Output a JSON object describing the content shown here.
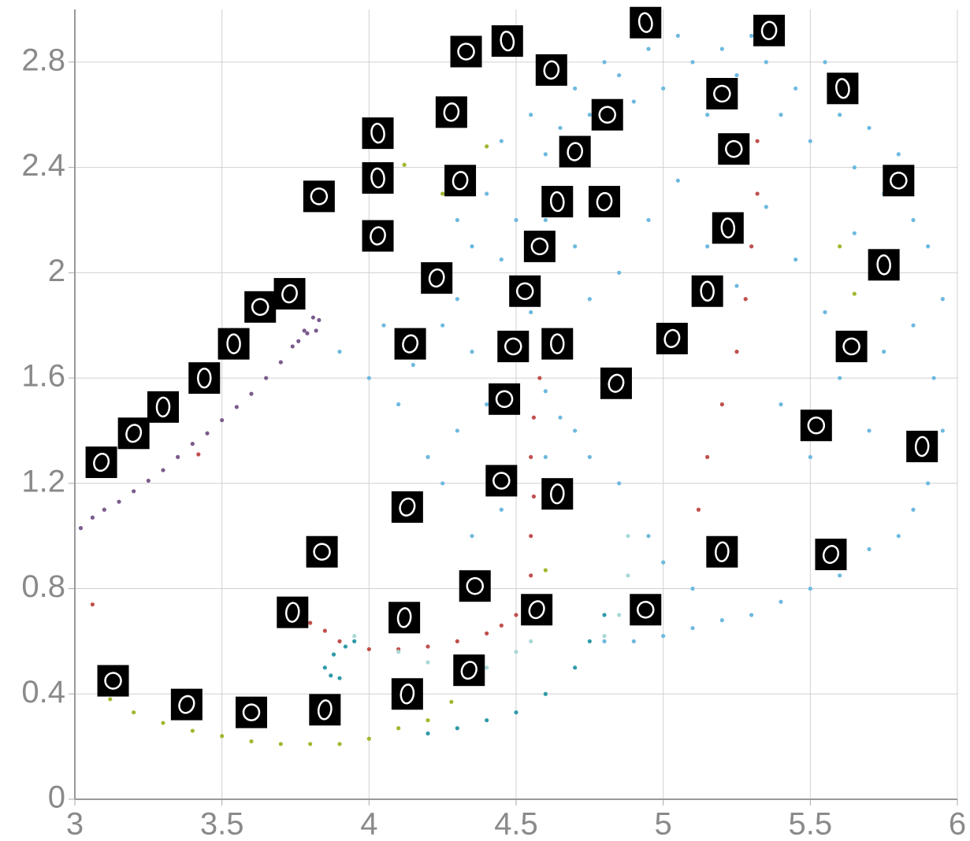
{
  "chart_data": {
    "type": "scatter",
    "xlim": [
      3,
      6
    ],
    "ylim": [
      0,
      3
    ],
    "xticks": [
      3,
      3.5,
      4,
      4.5,
      5,
      5.5,
      6
    ],
    "yticks": [
      0,
      0.4,
      0.8,
      1.2,
      1.6,
      2,
      2.4,
      2.8
    ],
    "grid": true,
    "series": [
      {
        "color": "#6db9df",
        "x": [
          4.3,
          4.35,
          4.4,
          4.45,
          4.5,
          4.55,
          4.6,
          4.65,
          4.7,
          4.75,
          4.8,
          4.85,
          4.9,
          4.95,
          5.0,
          5.05,
          5.1,
          5.15,
          5.2,
          5.25,
          5.3,
          5.35,
          5.4,
          5.45,
          5.5,
          5.55,
          5.6,
          5.65,
          5.7,
          5.75,
          5.8,
          5.85,
          5.9,
          5.95,
          4.2,
          4.25,
          4.3,
          4.35,
          4.45,
          4.5,
          4.55,
          4.6,
          4.65,
          4.7,
          4.75,
          4.85,
          4.95,
          5.05,
          5.15,
          5.25,
          5.35,
          5.45,
          5.55,
          5.65,
          5.75,
          5.85,
          5.92,
          5.95,
          5.9,
          5.85,
          5.8,
          5.7,
          5.6,
          5.5,
          5.4,
          5.3,
          5.2,
          5.1,
          5.0,
          4.9,
          4.8,
          4.4,
          4.3,
          4.2,
          4.1,
          4.0,
          3.9,
          4.25,
          4.35,
          4.45,
          4.6,
          4.7,
          4.05,
          4.15,
          4.6,
          4.65,
          4.75,
          4.85,
          4.95,
          5.0,
          5.1,
          5.4,
          5.5,
          5.6,
          5.7
        ],
        "y": [
          2.2,
          2.1,
          2.3,
          2.5,
          2.2,
          2.6,
          2.45,
          2.55,
          2.7,
          2.6,
          2.8,
          2.75,
          2.65,
          2.85,
          2.7,
          2.9,
          2.8,
          2.6,
          2.85,
          2.75,
          2.9,
          2.8,
          2.6,
          2.7,
          2.5,
          2.8,
          2.6,
          2.4,
          2.55,
          2.3,
          2.45,
          2.2,
          2.1,
          1.9,
          2.0,
          1.8,
          1.9,
          1.7,
          2.05,
          1.95,
          1.85,
          2.2,
          2.3,
          2.1,
          1.9,
          2.0,
          2.2,
          2.35,
          2.1,
          1.95,
          2.25,
          2.05,
          1.85,
          2.15,
          1.7,
          1.8,
          1.6,
          1.4,
          1.2,
          1.1,
          1.0,
          0.95,
          0.85,
          0.8,
          0.75,
          0.7,
          0.68,
          0.65,
          0.62,
          0.6,
          0.6,
          1.5,
          1.4,
          1.3,
          1.5,
          1.6,
          1.7,
          1.2,
          1.0,
          1.1,
          1.3,
          1.4,
          1.8,
          1.65,
          1.55,
          1.45,
          1.3,
          1.2,
          1.0,
          0.9,
          0.8,
          1.5,
          1.3,
          1.6,
          1.4
        ]
      },
      {
        "color": "#7b5b8c",
        "x": [
          3.02,
          3.06,
          3.1,
          3.15,
          3.2,
          3.25,
          3.3,
          3.35,
          3.4,
          3.45,
          3.5,
          3.55,
          3.6,
          3.65,
          3.7,
          3.74,
          3.78,
          3.81,
          3.83,
          3.82,
          3.79,
          3.76
        ],
        "y": [
          1.03,
          1.07,
          1.1,
          1.13,
          1.17,
          1.21,
          1.25,
          1.3,
          1.35,
          1.39,
          1.44,
          1.49,
          1.54,
          1.6,
          1.66,
          1.72,
          1.78,
          1.83,
          1.82,
          1.78,
          1.77,
          1.74
        ]
      },
      {
        "color": "#c0504d",
        "x": [
          4.55,
          4.5,
          4.45,
          4.4,
          4.3,
          4.2,
          4.1,
          4.0,
          3.9,
          3.85,
          3.8,
          4.55,
          4.55,
          4.56,
          4.55,
          4.56,
          4.58,
          4.6,
          5.32,
          5.32,
          5.3,
          5.28,
          5.25,
          5.2,
          5.15,
          5.12,
          3.06,
          3.42
        ],
        "y": [
          0.77,
          0.7,
          0.66,
          0.63,
          0.6,
          0.58,
          0.57,
          0.57,
          0.6,
          0.64,
          0.67,
          0.85,
          1.0,
          1.15,
          1.3,
          1.45,
          1.6,
          1.75,
          2.5,
          2.3,
          2.1,
          1.9,
          1.7,
          1.5,
          1.3,
          1.1,
          0.74,
          1.31
        ]
      },
      {
        "color": "#a1b82f",
        "x": [
          3.12,
          3.2,
          3.3,
          3.4,
          3.5,
          3.6,
          3.7,
          3.8,
          3.9,
          4.0,
          4.1,
          4.2,
          4.28,
          4.35,
          4.12,
          4.25,
          4.4,
          4.6,
          5.6,
          5.65
        ],
        "y": [
          0.38,
          0.33,
          0.29,
          0.26,
          0.24,
          0.22,
          0.21,
          0.21,
          0.21,
          0.23,
          0.27,
          0.3,
          0.37,
          0.45,
          2.41,
          2.3,
          2.48,
          0.87,
          2.1,
          1.92
        ]
      },
      {
        "color": "#2f9aa8",
        "x": [
          3.85,
          3.88,
          3.92,
          3.95,
          3.87,
          3.9,
          4.2,
          4.3,
          4.4,
          4.5,
          4.6,
          4.7,
          4.75,
          4.8
        ],
        "y": [
          0.5,
          0.55,
          0.58,
          0.6,
          0.47,
          0.46,
          0.25,
          0.27,
          0.3,
          0.33,
          0.4,
          0.5,
          0.6,
          0.7
        ]
      },
      {
        "color": "#a9d9d6",
        "x": [
          3.95,
          4.1,
          4.2,
          4.3,
          4.4,
          4.5,
          4.55,
          4.8,
          4.85,
          4.88,
          4.88
        ],
        "y": [
          0.62,
          0.56,
          0.52,
          0.49,
          0.5,
          0.56,
          0.6,
          0.62,
          0.7,
          0.85,
          1.0
        ]
      }
    ],
    "thumbnails": {
      "x": [
        4.94,
        5.36,
        4.33,
        4.47,
        4.62,
        5.2,
        5.61,
        4.28,
        4.81,
        4.03,
        4.7,
        5.24,
        4.03,
        4.31,
        3.83,
        4.64,
        4.8,
        5.8,
        5.22,
        4.03,
        4.58,
        5.75,
        4.23,
        4.53,
        5.15,
        3.73,
        3.63,
        3.54,
        4.14,
        4.49,
        4.64,
        5.03,
        5.64,
        3.44,
        4.84,
        4.46,
        3.3,
        3.2,
        5.52,
        5.88,
        3.09,
        4.45,
        4.64,
        4.13,
        3.84,
        5.2,
        5.57,
        4.36,
        3.74,
        4.57,
        4.94,
        4.12,
        4.34,
        3.13,
        4.13,
        3.38,
        3.6,
        3.85
      ],
      "y": [
        2.95,
        2.92,
        2.84,
        2.88,
        2.77,
        2.68,
        2.7,
        2.61,
        2.6,
        2.53,
        2.46,
        2.47,
        2.36,
        2.35,
        2.29,
        2.27,
        2.27,
        2.35,
        2.17,
        2.14,
        2.1,
        2.03,
        1.98,
        1.93,
        1.93,
        1.92,
        1.87,
        1.73,
        1.73,
        1.72,
        1.73,
        1.75,
        1.72,
        1.6,
        1.58,
        1.52,
        1.49,
        1.39,
        1.42,
        1.34,
        1.28,
        1.21,
        1.16,
        1.11,
        0.94,
        0.94,
        0.93,
        0.81,
        0.71,
        0.72,
        0.72,
        0.69,
        0.49,
        0.45,
        0.4,
        0.36,
        0.33,
        0.34
      ]
    }
  }
}
